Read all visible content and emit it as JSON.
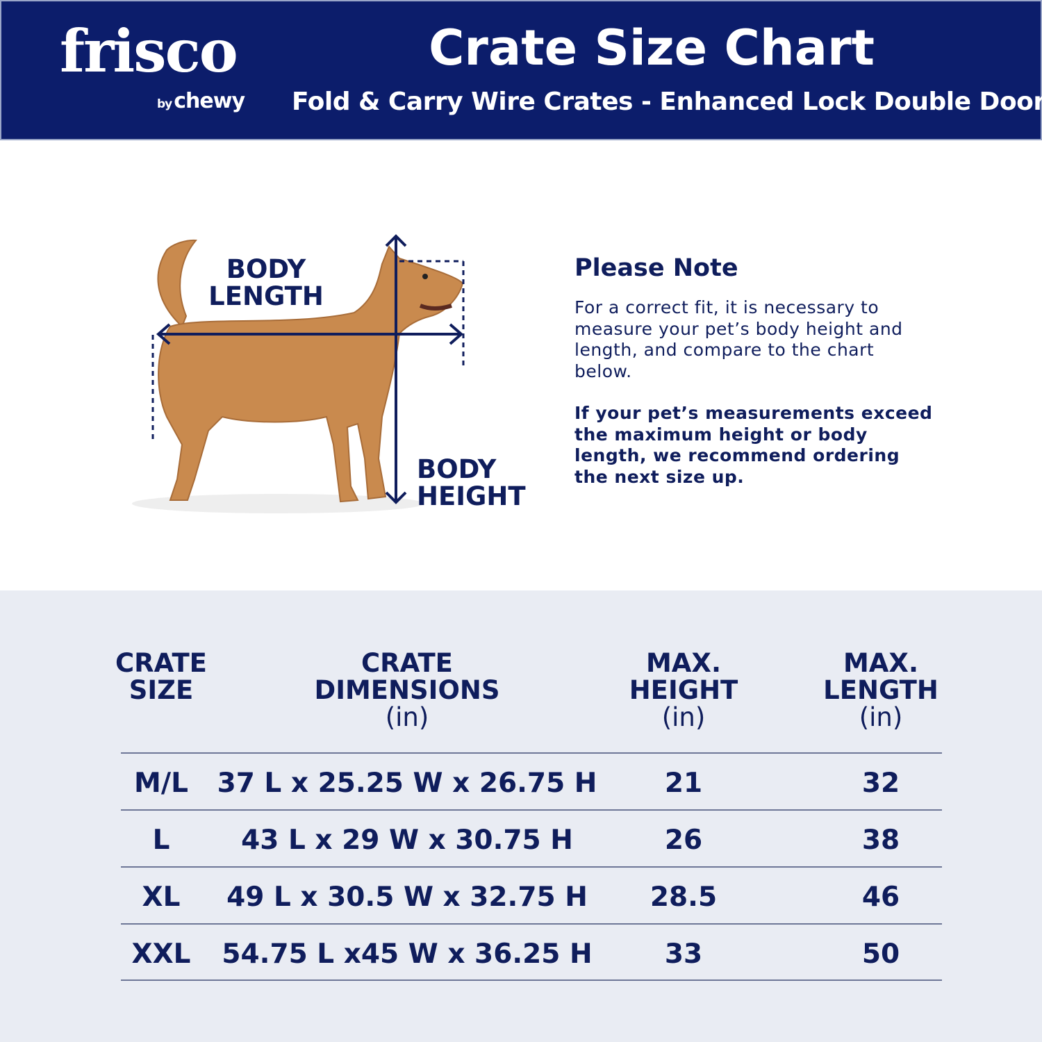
{
  "brand": {
    "logo": "frisco",
    "sublogo_by": "by",
    "sublogo": "chewy"
  },
  "header": {
    "title": "Crate Size Chart",
    "subtitle": "Fold & Carry Wire Crates - Enhanced Lock Double Door"
  },
  "illustration": {
    "length_label": [
      "BODY",
      "LENGTH"
    ],
    "height_label": [
      "BODY",
      "HEIGHT"
    ]
  },
  "note": {
    "title": "Please Note",
    "text": "For a correct fit, it is necessary to measure your pet’s body height and length, and compare to the chart below.",
    "bold_text": "If your pet’s measurements exceed the maximum height or body length, we recommend ordering the next size up."
  },
  "table": {
    "headers": [
      {
        "lines": [
          "CRATE",
          "SIZE"
        ],
        "unit": ""
      },
      {
        "lines": [
          "CRATE",
          "DIMENSIONS"
        ],
        "unit": "(in)"
      },
      {
        "lines": [
          "MAX.",
          "HEIGHT"
        ],
        "unit": "(in)"
      },
      {
        "lines": [
          "MAX.",
          "LENGTH"
        ],
        "unit": "(in)"
      }
    ],
    "rows": [
      [
        "M/L",
        "37 L x 25.25 W x 26.75 H",
        "21",
        "32"
      ],
      [
        "L",
        "43 L x 29 W x 30.75 H",
        "26",
        "38"
      ],
      [
        "XL",
        "49 L x 30.5 W x 32.75 H",
        "28.5",
        "46"
      ],
      [
        "XXL",
        "54.75 L x45 W x 36.25 H",
        "33",
        "50"
      ]
    ]
  },
  "colors": {
    "navy": "#0c1d6b",
    "text": "#0f1d5c",
    "lower_bg": "#e9ecf3",
    "dog": "#c98a4e"
  }
}
